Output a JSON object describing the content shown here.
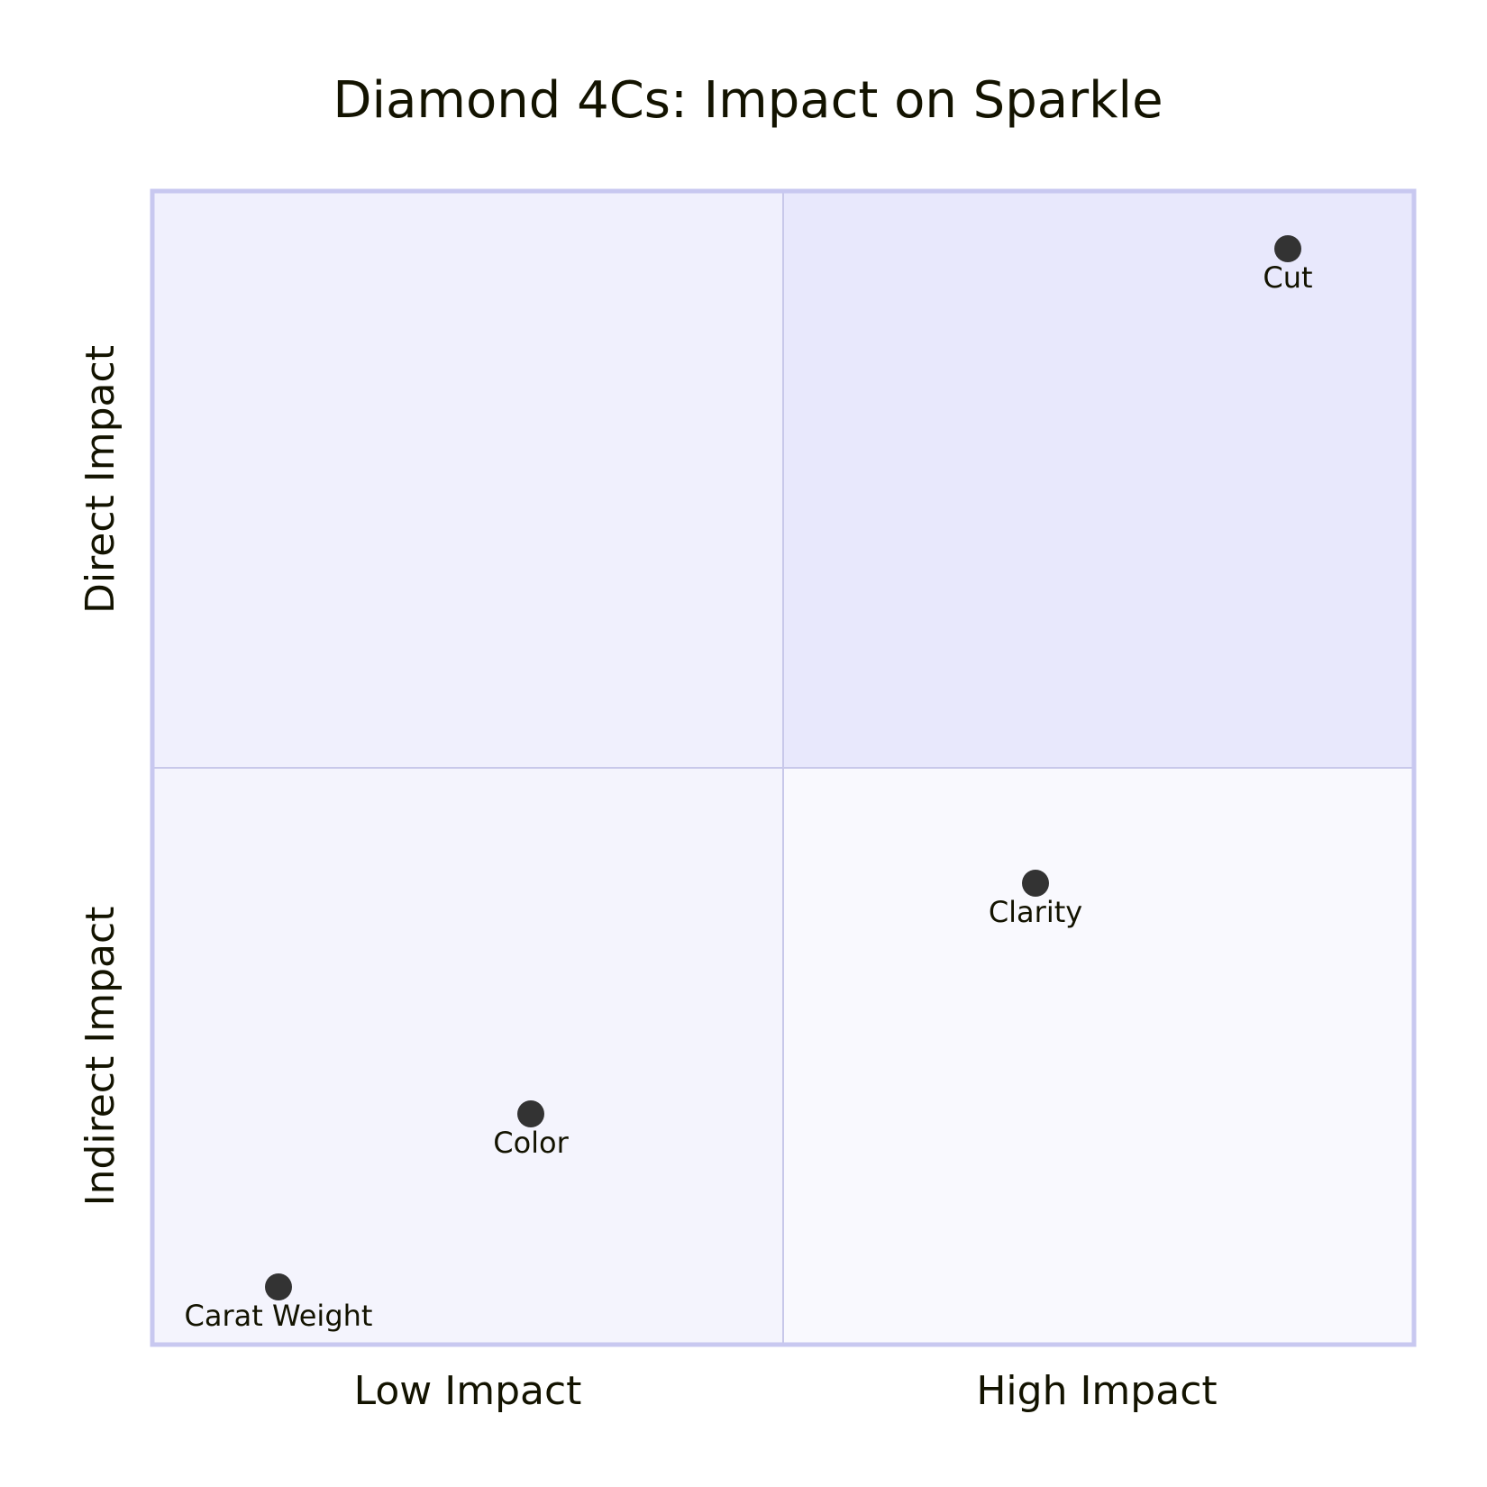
{
  "chart_data": {
    "type": "scatter",
    "title": "Diamond 4Cs: Impact on Sparkle",
    "x_axis": {
      "left_label": "Low Impact",
      "right_label": "High Impact",
      "range": [
        0,
        1
      ]
    },
    "y_axis": {
      "bottom_label": "Indirect Impact",
      "top_label": "Direct Impact",
      "range": [
        0,
        1
      ]
    },
    "quadrants": {
      "top_right": "",
      "top_left": "",
      "bottom_left": "",
      "bottom_right": ""
    },
    "quadrant_colors": {
      "top_right": "#e8e8fc",
      "top_left": "#f0f0fd",
      "bottom_left": "#f4f4fd",
      "bottom_right": "#f9f9fe"
    },
    "border_color": "#c8c8f0",
    "divider_color": "#c8c8ea",
    "point_color": "#333333",
    "points": [
      {
        "name": "Cut",
        "x": 0.9,
        "y": 0.95
      },
      {
        "name": "Clarity",
        "x": 0.7,
        "y": 0.4
      },
      {
        "name": "Color",
        "x": 0.3,
        "y": 0.2
      },
      {
        "name": "Carat Weight",
        "x": 0.1,
        "y": 0.05
      }
    ]
  }
}
